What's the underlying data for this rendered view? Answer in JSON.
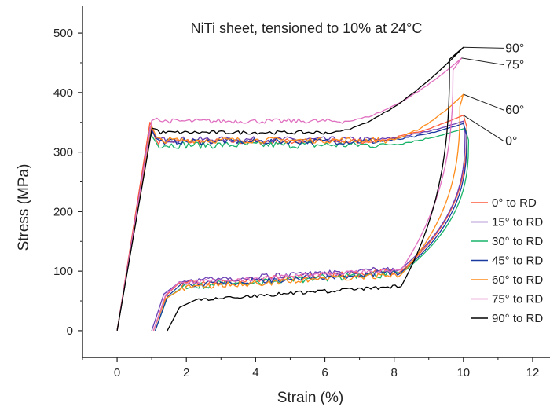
{
  "chart_data": {
    "type": "line",
    "title": "NiTi sheet, tensioned to 10% at 24°C",
    "xlabel": "Strain  (%)",
    "ylabel": "Stress  (MPa)",
    "xlim": [
      -1,
      12.5
    ],
    "ylim": [
      -45,
      545
    ],
    "xticks": [
      "0",
      "2",
      "4",
      "6",
      "8",
      "10",
      "12"
    ],
    "yticks": [
      "0",
      "100",
      "200",
      "300",
      "400",
      "500"
    ],
    "xtick_values": [
      0,
      2,
      4,
      6,
      8,
      10,
      12
    ],
    "ytick_values": [
      0,
      100,
      200,
      300,
      400,
      500
    ],
    "grid": false,
    "legend": "right",
    "series": [
      {
        "name": "0° to RD",
        "color": "#ff5a3c",
        "yield": 350,
        "plateau": 318,
        "noise": 5,
        "peak_x": 10.0,
        "peak_y": 362,
        "rise_x": 7.2,
        "end_x": 10.1,
        "zero_x": 1.05,
        "lower": 78
      },
      {
        "name": "15° to RD",
        "color": "#6a3fb3",
        "yield": 342,
        "plateau": 321,
        "noise": 5,
        "peak_x": 10.0,
        "peak_y": 352,
        "rise_x": 7.4,
        "end_x": 10.05,
        "zero_x": 1.0,
        "lower": 82
      },
      {
        "name": "30° to RD",
        "color": "#19b36a",
        "yield": 330,
        "plateau": 312,
        "noise": 6,
        "peak_x": 10.05,
        "peak_y": 340,
        "rise_x": 7.6,
        "end_x": 10.15,
        "zero_x": 1.1,
        "lower": 74
      },
      {
        "name": "45° to RD",
        "color": "#1a3aa0",
        "yield": 338,
        "plateau": 318,
        "noise": 5,
        "peak_x": 10.0,
        "peak_y": 348,
        "rise_x": 7.5,
        "end_x": 10.1,
        "zero_x": 1.1,
        "lower": 76
      },
      {
        "name": "60° to RD",
        "color": "#ff8c1a",
        "yield": 345,
        "plateau": 320,
        "noise": 5,
        "peak_x": 10.0,
        "peak_y": 397,
        "rise_x": 7.8,
        "end_x": 9.9,
        "zero_x": 1.05,
        "lower": 72
      },
      {
        "name": "75° to RD",
        "color": "#e070c0",
        "yield": 353,
        "plateau": 352,
        "noise": 4,
        "peak_x": 9.95,
        "peak_y": 458,
        "rise_x": 6.6,
        "end_x": 9.7,
        "zero_x": 1.05,
        "lower": 80
      },
      {
        "name": "90° to RD",
        "color": "#000000",
        "yield": 340,
        "plateau": 333,
        "noise": 3,
        "peak_x": 10.0,
        "peak_y": 476,
        "rise_x": 6.2,
        "end_x": 9.6,
        "zero_x": 1.45,
        "lower": 52
      }
    ],
    "annotations": [
      {
        "text": "90°",
        "x": 11.3,
        "y": 468,
        "target_x": 10.0,
        "target_y": 476
      },
      {
        "text": "75°",
        "x": 11.3,
        "y": 440,
        "target_x": 9.95,
        "target_y": 458
      },
      {
        "text": "60°",
        "x": 11.3,
        "y": 364,
        "target_x": 10.0,
        "target_y": 397
      },
      {
        "text": "0°",
        "x": 11.3,
        "y": 312,
        "target_x": 10.0,
        "target_y": 362
      }
    ]
  }
}
